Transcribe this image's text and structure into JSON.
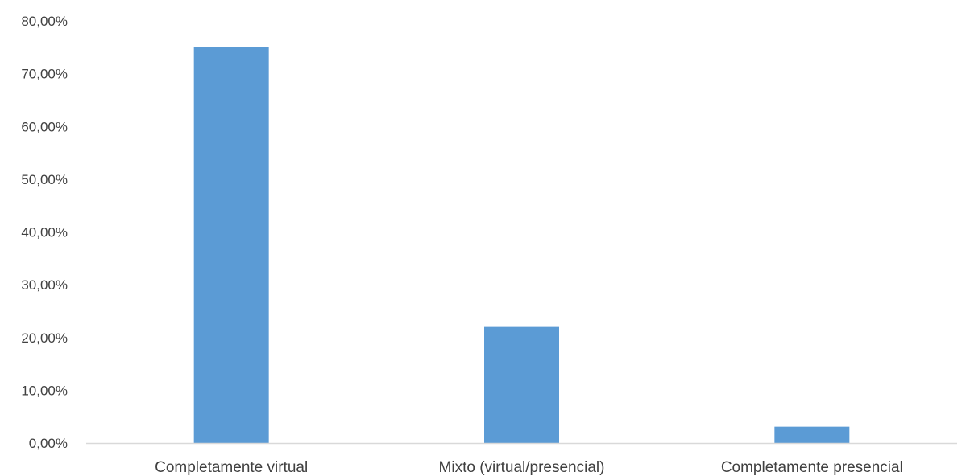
{
  "chart_data": {
    "type": "bar",
    "categories": [
      "Completamente virtual",
      "Mixto (virtual/presencial)",
      "Completamente presencial"
    ],
    "values": [
      75.0,
      22.0,
      3.1
    ],
    "ylim": [
      0,
      80
    ],
    "yticks": [
      "0,00%",
      "10,00%",
      "20,00%",
      "30,00%",
      "40,00%",
      "50,00%",
      "60,00%",
      "70,00%",
      "80,00%"
    ],
    "bar_color": "#5b9bd5",
    "axis_color": "#d9d9d9",
    "grid": false,
    "legend": "none"
  }
}
